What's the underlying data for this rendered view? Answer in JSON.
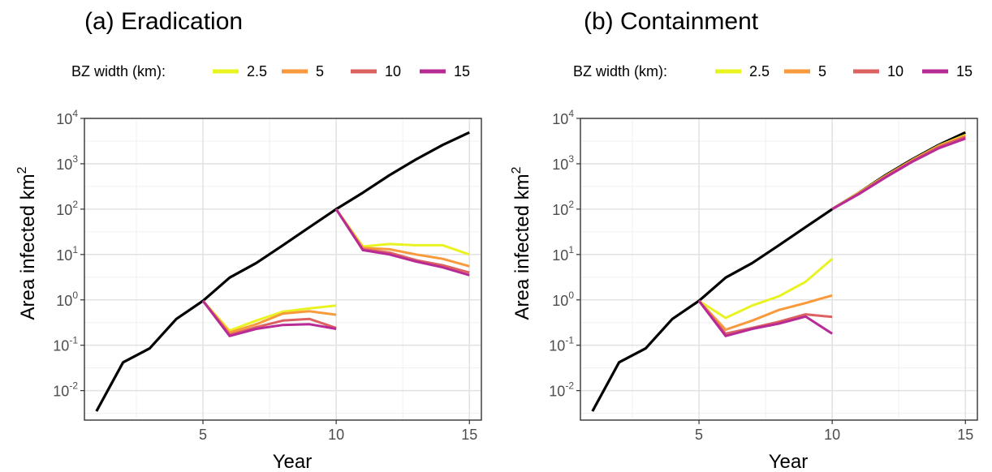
{
  "panels": [
    {
      "title": "(a) Eradication",
      "legend_title": "BZ width (km):",
      "ylabel": "Area infected km",
      "ylabel_sup": "2",
      "xlabel": "Year"
    },
    {
      "title": "(b) Containment",
      "legend_title": "BZ width (km):",
      "ylabel": "Area infected km",
      "ylabel_sup": "2",
      "xlabel": "Year"
    }
  ],
  "chart_data": [
    {
      "type": "line",
      "title": "(a) Eradication",
      "xlabel": "Year",
      "ylabel": "Area infected km2",
      "yscale": "log10",
      "xlim": [
        0.55,
        15.45
      ],
      "ylim_log10": [
        -2.65,
        4.0
      ],
      "xticks": [
        5,
        10,
        15
      ],
      "yticks_log10": [
        -2,
        -1,
        0,
        1,
        2,
        3,
        4
      ],
      "ytick_base": "10",
      "ytick_exponents": [
        "-2",
        "-1",
        "0",
        "1",
        "2",
        "3",
        "4"
      ],
      "grid": true,
      "legend_placement": "top",
      "legend_title": "BZ width (km):",
      "series": [
        {
          "name": "",
          "color": "#000000",
          "x": [
            1,
            2,
            3,
            4,
            5,
            6,
            7,
            8,
            9,
            10,
            11,
            12,
            13,
            14,
            15
          ],
          "y": [
            0.0035,
            0.042,
            0.085,
            0.38,
            0.95,
            3.1,
            6.5,
            16,
            40,
            100,
            230,
            560,
            1250,
            2600,
            4900
          ]
        },
        {
          "name": "2.5",
          "color": "#e9f321",
          "x": [
            5,
            6,
            7,
            8,
            9,
            10
          ],
          "y": [
            0.95,
            0.21,
            0.35,
            0.55,
            0.65,
            0.75
          ]
        },
        {
          "name": "5",
          "color": "#f89a3c",
          "x": [
            5,
            6,
            7,
            8,
            9,
            10
          ],
          "y": [
            0.95,
            0.19,
            0.29,
            0.5,
            0.56,
            0.47
          ]
        },
        {
          "name": "10",
          "color": "#dd6161",
          "x": [
            5,
            6,
            7,
            8,
            9,
            10
          ],
          "y": [
            0.95,
            0.17,
            0.25,
            0.35,
            0.38,
            0.24
          ]
        },
        {
          "name": "15",
          "color": "#b82a95",
          "x": [
            5,
            6,
            7,
            8,
            9,
            10
          ],
          "y": [
            0.95,
            0.16,
            0.23,
            0.28,
            0.29,
            0.23
          ]
        },
        {
          "name": "2.5",
          "color": "#e9f321",
          "x": [
            10,
            11,
            12,
            13,
            14,
            15
          ],
          "y": [
            100,
            15,
            17,
            16,
            16,
            10
          ]
        },
        {
          "name": "5",
          "color": "#f89a3c",
          "x": [
            10,
            11,
            12,
            13,
            14,
            15
          ],
          "y": [
            100,
            14,
            13,
            10,
            8,
            5.5
          ]
        },
        {
          "name": "10",
          "color": "#dd6161",
          "x": [
            10,
            11,
            12,
            13,
            14,
            15
          ],
          "y": [
            100,
            13,
            11,
            7.5,
            5.8,
            4
          ]
        },
        {
          "name": "15",
          "color": "#b82a95",
          "x": [
            10,
            11,
            12,
            13,
            14,
            15
          ],
          "y": [
            100,
            12.5,
            10,
            7,
            5.2,
            3.5
          ]
        }
      ]
    },
    {
      "type": "line",
      "title": "(b) Containment",
      "xlabel": "Year",
      "ylabel": "Area infected km2",
      "yscale": "log10",
      "xlim": [
        0.55,
        15.45
      ],
      "ylim_log10": [
        -2.65,
        4.0
      ],
      "xticks": [
        5,
        10,
        15
      ],
      "yticks_log10": [
        -2,
        -1,
        0,
        1,
        2,
        3,
        4
      ],
      "ytick_base": "10",
      "ytick_exponents": [
        "-2",
        "-1",
        "0",
        "1",
        "2",
        "3",
        "4"
      ],
      "grid": true,
      "legend_placement": "top",
      "legend_title": "BZ width (km):",
      "series": [
        {
          "name": "",
          "color": "#000000",
          "x": [
            1,
            2,
            3,
            4,
            5,
            6,
            7,
            8,
            9,
            10,
            11,
            12,
            13,
            14,
            15
          ],
          "y": [
            0.0035,
            0.042,
            0.085,
            0.38,
            0.95,
            3.1,
            6.5,
            16,
            40,
            100,
            230,
            560,
            1250,
            2600,
            4900
          ]
        },
        {
          "name": "2.5",
          "color": "#e9f321",
          "x": [
            5,
            6,
            7,
            8,
            9,
            10
          ],
          "y": [
            0.95,
            0.4,
            0.75,
            1.2,
            2.5,
            8
          ]
        },
        {
          "name": "5",
          "color": "#f89a3c",
          "x": [
            5,
            6,
            7,
            8,
            9,
            10
          ],
          "y": [
            0.95,
            0.22,
            0.35,
            0.6,
            0.85,
            1.25
          ]
        },
        {
          "name": "10",
          "color": "#dd6161",
          "x": [
            5,
            6,
            7,
            8,
            9,
            10
          ],
          "y": [
            0.95,
            0.18,
            0.24,
            0.33,
            0.48,
            0.42
          ]
        },
        {
          "name": "15",
          "color": "#b82a95",
          "x": [
            5,
            6,
            7,
            8,
            9,
            10
          ],
          "y": [
            0.95,
            0.16,
            0.23,
            0.3,
            0.43,
            0.18
          ]
        },
        {
          "name": "2.5",
          "color": "#e9f321",
          "x": [
            10,
            11,
            12,
            13,
            14,
            15
          ],
          "y": [
            100,
            230,
            540,
            1200,
            2500,
            4300
          ]
        },
        {
          "name": "5",
          "color": "#f89a3c",
          "x": [
            10,
            11,
            12,
            13,
            14,
            15
          ],
          "y": [
            100,
            225,
            530,
            1180,
            2450,
            4100
          ]
        },
        {
          "name": "10",
          "color": "#dd6161",
          "x": [
            10,
            11,
            12,
            13,
            14,
            15
          ],
          "y": [
            100,
            220,
            520,
            1150,
            2350,
            3900
          ]
        },
        {
          "name": "15",
          "color": "#b82a95",
          "x": [
            10,
            11,
            12,
            13,
            14,
            15
          ],
          "y": [
            100,
            215,
            500,
            1100,
            2200,
            3600
          ]
        }
      ]
    }
  ],
  "legend": [
    {
      "label": "2.5",
      "color": "#e9f321"
    },
    {
      "label": "5",
      "color": "#f89a3c"
    },
    {
      "label": "10",
      "color": "#dd6161"
    },
    {
      "label": "15",
      "color": "#b82a95"
    }
  ]
}
